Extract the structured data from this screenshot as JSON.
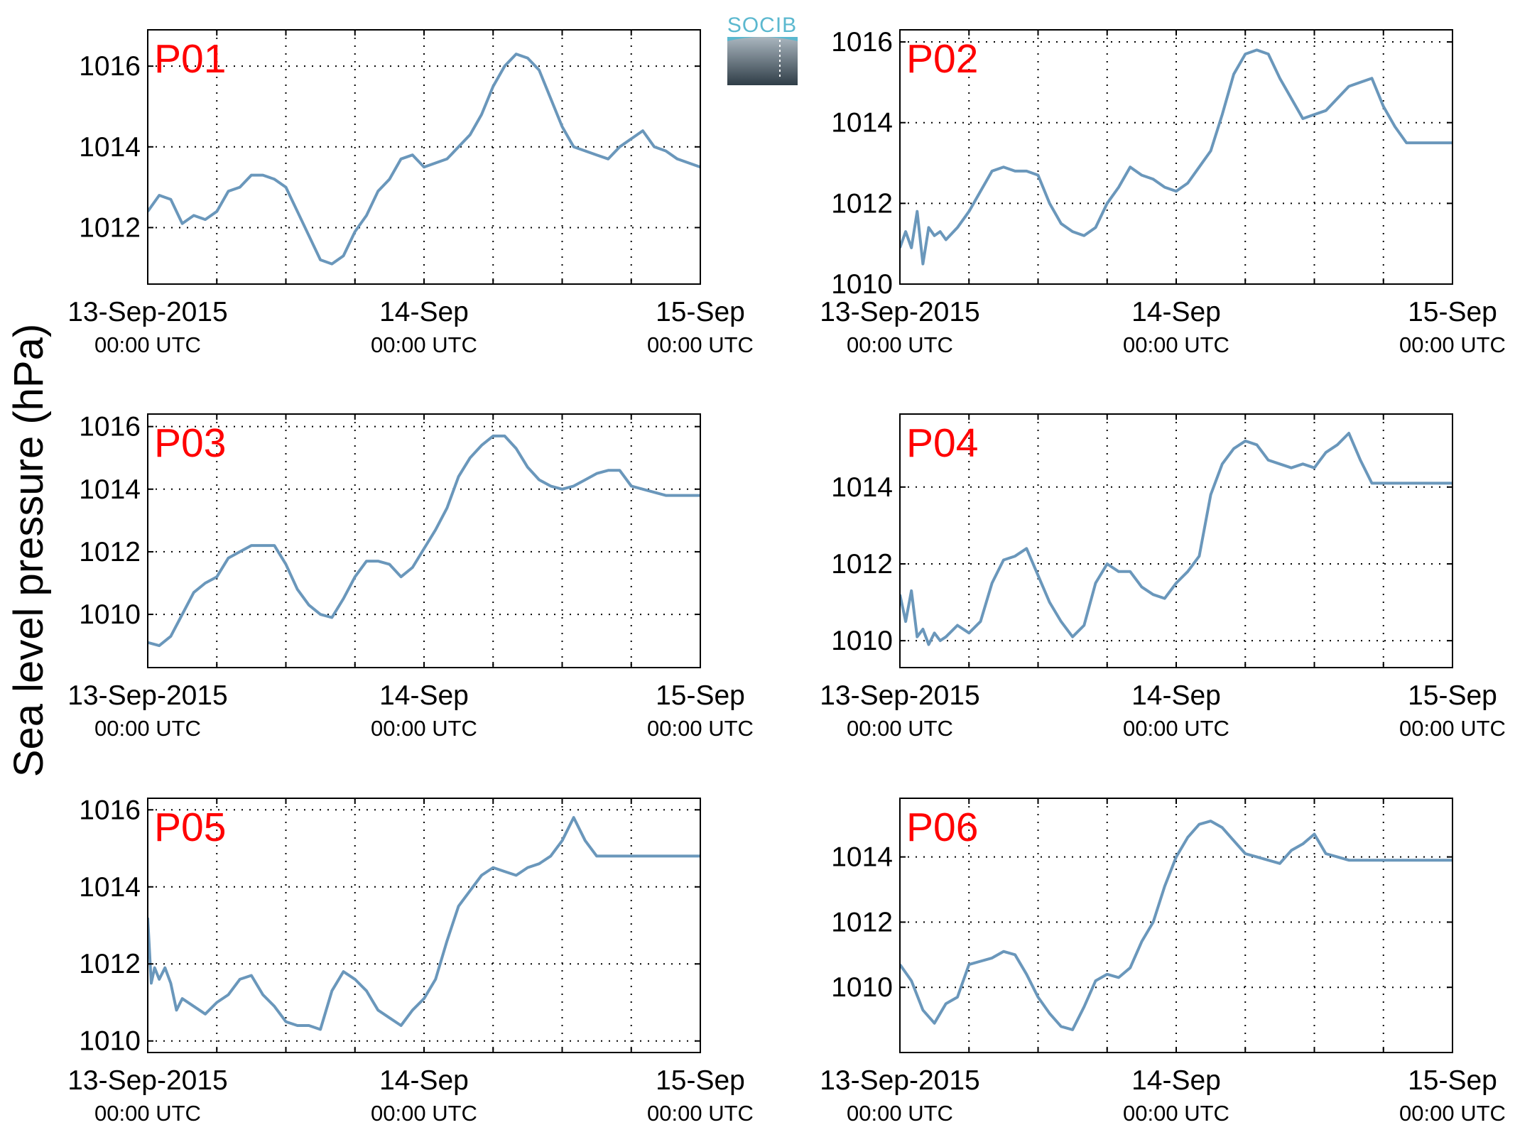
{
  "figure": {
    "ylabel": "Sea level pressure (hPa)",
    "logo_text": "SOCIB",
    "colors": {
      "line": "#6a97bb",
      "label": "#ff0000",
      "grid": "#000000"
    }
  },
  "chart_data": [
    {
      "type": "line",
      "title": "P01",
      "ylim": [
        1010.6,
        1016.9
      ],
      "yticks": [
        1012,
        1014,
        1016
      ],
      "xticks": [
        {
          "t": 0,
          "main": "13-Sep-2015",
          "sub": "00:00 UTC"
        },
        {
          "t": 24,
          "main": "14-Sep",
          "sub": "00:00 UTC"
        },
        {
          "t": 48,
          "main": "15-Sep",
          "sub": "00:00 UTC"
        }
      ],
      "grid": true,
      "xlim": [
        0,
        48
      ],
      "x_hours": [
        0,
        1,
        2,
        3,
        4,
        5,
        6,
        7,
        8,
        9,
        10,
        11,
        12,
        13,
        14,
        15,
        16,
        17,
        18,
        19,
        20,
        21,
        22,
        23,
        24,
        25,
        26,
        27,
        28,
        29,
        30,
        31,
        32,
        33,
        34,
        35,
        36,
        37,
        38,
        39,
        40,
        41,
        42,
        43,
        44,
        45,
        46,
        47,
        48
      ],
      "values": [
        1012.4,
        1012.8,
        1012.7,
        1012.1,
        1012.3,
        1012.2,
        1012.4,
        1012.9,
        1013.0,
        1013.3,
        1013.3,
        1013.2,
        1013.0,
        1012.4,
        1011.8,
        1011.2,
        1011.1,
        1011.3,
        1011.9,
        1012.3,
        1012.9,
        1013.2,
        1013.7,
        1013.8,
        1013.5,
        1013.6,
        1013.7,
        1014.0,
        1014.3,
        1014.8,
        1015.5,
        1016.0,
        1016.3,
        1016.2,
        1015.9,
        1015.2,
        1014.5,
        1014.0,
        1013.9,
        1013.8,
        1013.7,
        1014.0,
        1014.2,
        1014.4,
        1014.0,
        1013.9,
        1013.7,
        1013.6,
        1013.5
      ]
    },
    {
      "type": "line",
      "title": "P02",
      "ylim": [
        1010.0,
        1016.3
      ],
      "yticks": [
        1010,
        1012,
        1014,
        1016
      ],
      "xticks": [
        {
          "t": 0,
          "main": "13-Sep-2015",
          "sub": "00:00 UTC"
        },
        {
          "t": 24,
          "main": "14-Sep",
          "sub": "00:00 UTC"
        },
        {
          "t": 48,
          "main": "15-Sep",
          "sub": "00:00 UTC"
        }
      ],
      "grid": true,
      "xlim": [
        0,
        48
      ],
      "x_hours": [
        0,
        0.5,
        1,
        1.5,
        2,
        2.5,
        3,
        3.5,
        4,
        5,
        6,
        7,
        8,
        9,
        10,
        11,
        12,
        13,
        14,
        15,
        16,
        17,
        18,
        19,
        20,
        21,
        22,
        23,
        24,
        25,
        26,
        27,
        28,
        29,
        30,
        31,
        32,
        33,
        34,
        35,
        36,
        37,
        38,
        39,
        40,
        41,
        42,
        43,
        44,
        45,
        46,
        47,
        48
      ],
      "values": [
        1010.9,
        1011.3,
        1010.9,
        1011.8,
        1010.5,
        1011.4,
        1011.2,
        1011.3,
        1011.1,
        1011.4,
        1011.8,
        1012.3,
        1012.8,
        1012.9,
        1012.8,
        1012.8,
        1012.7,
        1012.0,
        1011.5,
        1011.3,
        1011.2,
        1011.4,
        1012.0,
        1012.4,
        1012.9,
        1012.7,
        1012.6,
        1012.4,
        1012.3,
        1012.5,
        1012.9,
        1013.3,
        1014.2,
        1015.2,
        1015.7,
        1015.8,
        1015.7,
        1015.1,
        1014.6,
        1014.1,
        1014.2,
        1014.3,
        1014.6,
        1014.9,
        1015.0,
        1015.1,
        1014.4,
        1013.9,
        1013.5,
        1013.5,
        1013.5,
        1013.5,
        1013.5
      ]
    },
    {
      "type": "line",
      "title": "P03",
      "ylim": [
        1008.3,
        1016.4
      ],
      "yticks": [
        1010,
        1012,
        1014,
        1016
      ],
      "xticks": [
        {
          "t": 0,
          "main": "13-Sep-2015",
          "sub": "00:00 UTC"
        },
        {
          "t": 24,
          "main": "14-Sep",
          "sub": "00:00 UTC"
        },
        {
          "t": 48,
          "main": "15-Sep",
          "sub": "00:00 UTC"
        }
      ],
      "grid": true,
      "xlim": [
        0,
        48
      ],
      "x_hours": [
        0,
        1,
        2,
        3,
        4,
        5,
        6,
        7,
        8,
        9,
        10,
        11,
        12,
        13,
        14,
        15,
        16,
        17,
        18,
        19,
        20,
        21,
        22,
        23,
        24,
        25,
        26,
        27,
        28,
        29,
        30,
        31,
        32,
        33,
        34,
        35,
        36,
        37,
        38,
        39,
        40,
        41,
        42,
        43,
        44,
        45,
        46,
        47,
        48
      ],
      "values": [
        1009.1,
        1009.0,
        1009.3,
        1010.0,
        1010.7,
        1011.0,
        1011.2,
        1011.8,
        1012.0,
        1012.2,
        1012.2,
        1012.2,
        1011.6,
        1010.8,
        1010.3,
        1010.0,
        1009.9,
        1010.5,
        1011.2,
        1011.7,
        1011.7,
        1011.6,
        1011.2,
        1011.5,
        1012.1,
        1012.7,
        1013.4,
        1014.4,
        1015.0,
        1015.4,
        1015.7,
        1015.7,
        1015.3,
        1014.7,
        1014.3,
        1014.1,
        1014.0,
        1014.1,
        1014.3,
        1014.5,
        1014.6,
        1014.6,
        1014.1,
        1014.0,
        1013.9,
        1013.8,
        1013.8,
        1013.8,
        1013.8
      ]
    },
    {
      "type": "line",
      "title": "P04",
      "ylim": [
        1009.3,
        1015.9
      ],
      "yticks": [
        1010,
        1012,
        1014
      ],
      "xticks": [
        {
          "t": 0,
          "main": "13-Sep-2015",
          "sub": "00:00 UTC"
        },
        {
          "t": 24,
          "main": "14-Sep",
          "sub": "00:00 UTC"
        },
        {
          "t": 48,
          "main": "15-Sep",
          "sub": "00:00 UTC"
        }
      ],
      "grid": true,
      "xlim": [
        0,
        48
      ],
      "x_hours": [
        0,
        0.5,
        1,
        1.5,
        2,
        2.5,
        3,
        3.5,
        4,
        5,
        6,
        7,
        8,
        9,
        10,
        11,
        12,
        13,
        14,
        15,
        16,
        17,
        18,
        19,
        20,
        21,
        22,
        23,
        24,
        25,
        26,
        27,
        28,
        29,
        30,
        31,
        32,
        33,
        34,
        35,
        36,
        37,
        38,
        39,
        40,
        41,
        42,
        43,
        44,
        45,
        46,
        47,
        48
      ],
      "values": [
        1011.2,
        1010.5,
        1011.3,
        1010.1,
        1010.3,
        1009.9,
        1010.2,
        1010.0,
        1010.1,
        1010.4,
        1010.2,
        1010.5,
        1011.5,
        1012.1,
        1012.2,
        1012.4,
        1011.7,
        1011.0,
        1010.5,
        1010.1,
        1010.4,
        1011.5,
        1012.0,
        1011.8,
        1011.8,
        1011.4,
        1011.2,
        1011.1,
        1011.5,
        1011.8,
        1012.2,
        1013.8,
        1014.6,
        1015.0,
        1015.2,
        1015.1,
        1014.7,
        1014.6,
        1014.5,
        1014.6,
        1014.5,
        1014.9,
        1015.1,
        1015.4,
        1014.7,
        1014.1,
        1014.1,
        1014.1,
        1014.1,
        1014.1,
        1014.1,
        1014.1,
        1014.1
      ]
    },
    {
      "type": "line",
      "title": "P05",
      "ylim": [
        1009.7,
        1016.3
      ],
      "yticks": [
        1010,
        1012,
        1014,
        1016
      ],
      "xticks": [
        {
          "t": 0,
          "main": "13-Sep-2015",
          "sub": "00:00 UTC"
        },
        {
          "t": 24,
          "main": "14-Sep",
          "sub": "00:00 UTC"
        },
        {
          "t": 48,
          "main": "15-Sep",
          "sub": "00:00 UTC"
        }
      ],
      "grid": true,
      "xlim": [
        0,
        48
      ],
      "x_hours": [
        0,
        0.3,
        0.6,
        1,
        1.5,
        2,
        2.5,
        3,
        4,
        5,
        6,
        7,
        8,
        9,
        10,
        11,
        12,
        13,
        14,
        15,
        16,
        17,
        18,
        19,
        20,
        21,
        22,
        23,
        24,
        25,
        26,
        27,
        28,
        29,
        30,
        31,
        32,
        33,
        34,
        35,
        36,
        37,
        38,
        39,
        40,
        41,
        42,
        43,
        44,
        45,
        46,
        47,
        48
      ],
      "values": [
        1013.2,
        1011.5,
        1011.9,
        1011.6,
        1011.9,
        1011.5,
        1010.8,
        1011.1,
        1010.9,
        1010.7,
        1011.0,
        1011.2,
        1011.6,
        1011.7,
        1011.2,
        1010.9,
        1010.5,
        1010.4,
        1010.4,
        1010.3,
        1011.3,
        1011.8,
        1011.6,
        1011.3,
        1010.8,
        1010.6,
        1010.4,
        1010.8,
        1011.1,
        1011.6,
        1012.6,
        1013.5,
        1013.9,
        1014.3,
        1014.5,
        1014.4,
        1014.3,
        1014.5,
        1014.6,
        1014.8,
        1015.2,
        1015.8,
        1015.2,
        1014.8,
        1014.8,
        1014.8,
        1014.8,
        1014.8,
        1014.8,
        1014.8,
        1014.8,
        1014.8,
        1014.8
      ]
    },
    {
      "type": "line",
      "title": "P06",
      "ylim": [
        1008.0,
        1015.8
      ],
      "yticks": [
        1010,
        1012,
        1014
      ],
      "xticks": [
        {
          "t": 0,
          "main": "13-Sep-2015",
          "sub": "00:00 UTC"
        },
        {
          "t": 24,
          "main": "14-Sep",
          "sub": "00:00 UTC"
        },
        {
          "t": 48,
          "main": "15-Sep",
          "sub": "00:00 UTC"
        }
      ],
      "grid": true,
      "xlim": [
        0,
        48
      ],
      "x_hours": [
        0,
        1,
        2,
        3,
        4,
        5,
        6,
        7,
        8,
        9,
        10,
        11,
        12,
        13,
        14,
        15,
        16,
        17,
        18,
        19,
        20,
        21,
        22,
        23,
        24,
        25,
        26,
        27,
        28,
        29,
        30,
        31,
        32,
        33,
        34,
        35,
        36,
        37,
        38,
        39,
        40,
        41,
        42,
        43,
        44,
        45,
        46,
        47,
        48
      ],
      "values": [
        1010.7,
        1010.2,
        1009.3,
        1008.9,
        1009.5,
        1009.7,
        1010.7,
        1010.8,
        1010.9,
        1011.1,
        1011.0,
        1010.4,
        1009.7,
        1009.2,
        1008.8,
        1008.7,
        1009.4,
        1010.2,
        1010.4,
        1010.3,
        1010.6,
        1011.4,
        1012.0,
        1013.1,
        1014.0,
        1014.6,
        1015.0,
        1015.1,
        1014.9,
        1014.5,
        1014.1,
        1014.0,
        1013.9,
        1013.8,
        1014.2,
        1014.4,
        1014.7,
        1014.1,
        1014.0,
        1013.9,
        1013.9,
        1013.9,
        1013.9,
        1013.9,
        1013.9,
        1013.9,
        1013.9,
        1013.9,
        1013.9
      ]
    }
  ]
}
